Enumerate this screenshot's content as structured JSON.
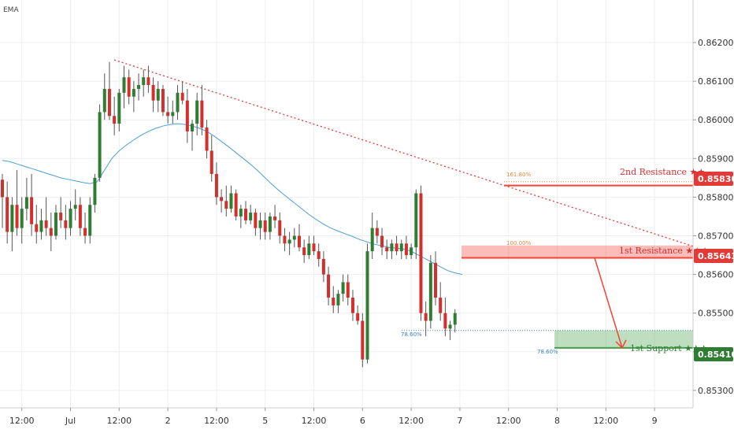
{
  "legend": {
    "indicator": "EMA"
  },
  "colors": {
    "up": "#2e7d32",
    "down": "#d32f2f",
    "ema": "#4a9fd8",
    "trendline": "#e53935",
    "resistance": "#f44336",
    "support": "#43a047",
    "fib_resistance": "#e08a3c",
    "fib_support": "#3b82c4",
    "grid": "#eeeeee",
    "axis_text": "#333333"
  },
  "annotations": {
    "resistance2": {
      "label": "2nd Resistance ★★",
      "price": "0.85830"
    },
    "resistance1": {
      "label": "1st Resistance ★★★",
      "price": "0.85643"
    },
    "support1": {
      "label": "1st Support ★★★",
      "price": "0.85410"
    },
    "fib_161": "161.80%",
    "fib_100": "100.00%",
    "fib_786_left": "78.60%",
    "fib_786_right": "78.60%"
  },
  "chart_data": {
    "type": "candlestick",
    "symbol_indicator": "EMA",
    "ylim": [
      0.85255,
      0.8631
    ],
    "y_ticks": [
      "0.86200",
      "0.86100",
      "0.86000",
      "0.85900",
      "0.85800",
      "0.85700",
      "0.85600",
      "0.85500",
      "0.85400",
      "0.85300"
    ],
    "y_tick_values": [
      0.862,
      0.861,
      0.86,
      0.859,
      0.858,
      0.857,
      0.856,
      0.855,
      0.854,
      0.853
    ],
    "x_ticks": [
      "12:00",
      "Jul",
      "12:00",
      "2",
      "12:00",
      "5",
      "12:00",
      "6",
      "12:00",
      "7",
      "12:00",
      "8",
      "12:00",
      "9"
    ],
    "x_tick_index": [
      4,
      14,
      24,
      34,
      44,
      54,
      64,
      74,
      84,
      94,
      104,
      114,
      124,
      134
    ],
    "levels": {
      "resistance2": 0.8583,
      "resistance1": 0.85643,
      "resistance1_zone": [
        0.85643,
        0.85675
      ],
      "support1": 0.8541,
      "support1_zone": [
        0.8541,
        0.85455
      ]
    },
    "candles": [
      [
        0.85845,
        0.8586,
        0.8572,
        0.858
      ],
      [
        0.858,
        0.8584,
        0.8568,
        0.8571
      ],
      [
        0.8571,
        0.858,
        0.8566,
        0.8578
      ],
      [
        0.8578,
        0.8587,
        0.857,
        0.8572
      ],
      [
        0.8572,
        0.858,
        0.8568,
        0.8577
      ],
      [
        0.8577,
        0.8585,
        0.8574,
        0.858
      ],
      [
        0.858,
        0.8586,
        0.857,
        0.8573
      ],
      [
        0.8573,
        0.8578,
        0.8568,
        0.8571
      ],
      [
        0.8571,
        0.8577,
        0.8569,
        0.8574
      ],
      [
        0.8574,
        0.858,
        0.857,
        0.8572
      ],
      [
        0.8572,
        0.8576,
        0.8566,
        0.857
      ],
      [
        0.857,
        0.8578,
        0.8569,
        0.8576
      ],
      [
        0.8576,
        0.858,
        0.8572,
        0.8574
      ],
      [
        0.8574,
        0.8578,
        0.8569,
        0.8572
      ],
      [
        0.8572,
        0.8579,
        0.857,
        0.8577
      ],
      [
        0.8577,
        0.8582,
        0.8574,
        0.8578
      ],
      [
        0.8578,
        0.858,
        0.857,
        0.8572
      ],
      [
        0.8572,
        0.8576,
        0.8568,
        0.857
      ],
      [
        0.857,
        0.858,
        0.8568,
        0.8578
      ],
      [
        0.8578,
        0.8586,
        0.8576,
        0.8585
      ],
      [
        0.8585,
        0.8604,
        0.8584,
        0.8602
      ],
      [
        0.8602,
        0.8612,
        0.86,
        0.8608
      ],
      [
        0.8608,
        0.8615,
        0.86,
        0.8601
      ],
      [
        0.8601,
        0.8606,
        0.8596,
        0.8599
      ],
      [
        0.8599,
        0.8608,
        0.8597,
        0.8607
      ],
      [
        0.8607,
        0.8614,
        0.8603,
        0.8611
      ],
      [
        0.8611,
        0.8613,
        0.8604,
        0.8606
      ],
      [
        0.8606,
        0.861,
        0.8602,
        0.8608
      ],
      [
        0.8608,
        0.8612,
        0.8605,
        0.8609
      ],
      [
        0.8609,
        0.8613,
        0.8606,
        0.8611
      ],
      [
        0.8611,
        0.8614,
        0.8607,
        0.8609
      ],
      [
        0.8609,
        0.8611,
        0.8602,
        0.8605
      ],
      [
        0.8605,
        0.861,
        0.8602,
        0.8608
      ],
      [
        0.8608,
        0.8609,
        0.8601,
        0.8602
      ],
      [
        0.8602,
        0.8606,
        0.8599,
        0.8601
      ],
      [
        0.8601,
        0.8605,
        0.8599,
        0.8602
      ],
      [
        0.8602,
        0.8609,
        0.86,
        0.8607
      ],
      [
        0.8607,
        0.861,
        0.8604,
        0.8605
      ],
      [
        0.8605,
        0.8608,
        0.8594,
        0.8597
      ],
      [
        0.8597,
        0.86,
        0.8592,
        0.8599
      ],
      [
        0.8599,
        0.8607,
        0.8596,
        0.8605
      ],
      [
        0.8605,
        0.8609,
        0.8596,
        0.8598
      ],
      [
        0.8598,
        0.86,
        0.859,
        0.8592
      ],
      [
        0.8592,
        0.8596,
        0.8584,
        0.8586
      ],
      [
        0.8586,
        0.8589,
        0.8578,
        0.858
      ],
      [
        0.858,
        0.8582,
        0.8576,
        0.8579
      ],
      [
        0.8579,
        0.8583,
        0.8575,
        0.8577
      ],
      [
        0.8577,
        0.8583,
        0.8576,
        0.8581
      ],
      [
        0.8581,
        0.8582,
        0.8574,
        0.8575
      ],
      [
        0.8575,
        0.8578,
        0.8572,
        0.8577
      ],
      [
        0.8577,
        0.8579,
        0.8573,
        0.8574
      ],
      [
        0.8574,
        0.8578,
        0.8573,
        0.8576
      ],
      [
        0.8576,
        0.8577,
        0.857,
        0.8572
      ],
      [
        0.8572,
        0.8576,
        0.8569,
        0.8574
      ],
      [
        0.8574,
        0.8576,
        0.8569,
        0.8571
      ],
      [
        0.8571,
        0.8576,
        0.8569,
        0.8575
      ],
      [
        0.8575,
        0.8578,
        0.8572,
        0.8574
      ],
      [
        0.8574,
        0.8576,
        0.8568,
        0.857
      ],
      [
        0.857,
        0.8572,
        0.8566,
        0.8568
      ],
      [
        0.8568,
        0.8571,
        0.8565,
        0.8569
      ],
      [
        0.8569,
        0.8572,
        0.8567,
        0.857
      ],
      [
        0.857,
        0.8573,
        0.8566,
        0.8567
      ],
      [
        0.8567,
        0.8569,
        0.8563,
        0.8565
      ],
      [
        0.8565,
        0.857,
        0.8564,
        0.8568
      ],
      [
        0.8568,
        0.857,
        0.8565,
        0.8566
      ],
      [
        0.8566,
        0.8568,
        0.8562,
        0.8564
      ],
      [
        0.8564,
        0.8566,
        0.8558,
        0.856
      ],
      [
        0.856,
        0.8562,
        0.8552,
        0.8554
      ],
      [
        0.8554,
        0.8557,
        0.855,
        0.8552
      ],
      [
        0.8552,
        0.8556,
        0.855,
        0.8555
      ],
      [
        0.8555,
        0.856,
        0.8553,
        0.8558
      ],
      [
        0.8558,
        0.856,
        0.8552,
        0.8554
      ],
      [
        0.8554,
        0.8556,
        0.8548,
        0.855
      ],
      [
        0.855,
        0.8552,
        0.8547,
        0.8548
      ],
      [
        0.8548,
        0.855,
        0.8536,
        0.8538
      ],
      [
        0.8538,
        0.8568,
        0.8537,
        0.8566
      ],
      [
        0.8566,
        0.8576,
        0.8564,
        0.8572
      ],
      [
        0.8572,
        0.8574,
        0.8568,
        0.857
      ],
      [
        0.857,
        0.8572,
        0.8565,
        0.8567
      ],
      [
        0.8567,
        0.8569,
        0.8564,
        0.8566
      ],
      [
        0.8566,
        0.8569,
        0.8564,
        0.8568
      ],
      [
        0.8568,
        0.857,
        0.8565,
        0.8566
      ],
      [
        0.8566,
        0.8569,
        0.8564,
        0.8568
      ],
      [
        0.8568,
        0.857,
        0.8564,
        0.8565
      ],
      [
        0.8565,
        0.8568,
        0.8564,
        0.8567
      ],
      [
        0.8567,
        0.8582,
        0.8564,
        0.8581
      ],
      [
        0.8581,
        0.8583,
        0.8548,
        0.855
      ],
      [
        0.855,
        0.8553,
        0.8544,
        0.8548
      ],
      [
        0.8548,
        0.8565,
        0.8546,
        0.8563
      ],
      [
        0.8563,
        0.8566,
        0.8552,
        0.8554
      ],
      [
        0.8554,
        0.8558,
        0.8548,
        0.855
      ],
      [
        0.855,
        0.8554,
        0.8544,
        0.8546
      ],
      [
        0.8546,
        0.8548,
        0.8543,
        0.8547
      ],
      [
        0.8547,
        0.8551,
        0.8545,
        0.855
      ]
    ],
    "ema": [
      0.85895,
      0.85892,
      0.85886,
      0.8588,
      0.85874,
      0.85868,
      0.85862,
      0.85856,
      0.8585,
      0.85846,
      0.85842,
      0.85838,
      0.85835,
      0.8584,
      0.8587,
      0.859,
      0.8592,
      0.85935,
      0.85948,
      0.8596,
      0.8597,
      0.85978,
      0.85984,
      0.85988,
      0.8599,
      0.85988,
      0.85984,
      0.85978,
      0.8597,
      0.85958,
      0.85944,
      0.8593,
      0.85915,
      0.859,
      0.85885,
      0.85868,
      0.8585,
      0.85832,
      0.85815,
      0.858,
      0.85785,
      0.8577,
      0.85755,
      0.85742,
      0.8573,
      0.8572,
      0.85712,
      0.85705,
      0.85698,
      0.8569,
      0.85684,
      0.85678,
      0.85674,
      0.8567,
      0.85668,
      0.85666,
      0.8566,
      0.8565,
      0.8564,
      0.8563,
      0.8562,
      0.8561,
      0.85604,
      0.856
    ]
  }
}
